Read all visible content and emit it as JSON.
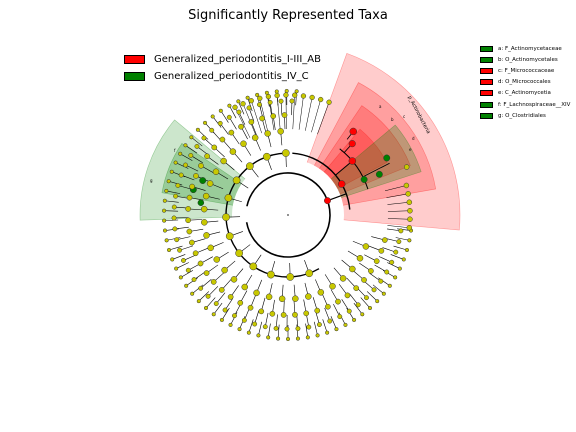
{
  "title": "Significantly Represented Taxa",
  "legend": [
    {
      "label": "Generalized_periodontitis_I-III_AB",
      "color": "#ff0000"
    },
    {
      "label": "Generalized_periodontitis_IV_C",
      "color": "#008000"
    }
  ],
  "side_legend": [
    {
      "label": "a: F_Actinomycetaceae",
      "color": "#008000"
    },
    {
      "label": "b: O_Actinomycetales",
      "color": "#008000"
    },
    {
      "label": "c: F_Micrococcaceae",
      "color": "#ff0000"
    },
    {
      "label": "d: O_Micrococcales",
      "color": "#ff0000"
    },
    {
      "label": "e: C_Actinomycetia",
      "color": "#ff0000"
    },
    {
      "label": "f: F_Lachnospiraceae__XIV",
      "color": "#008000"
    },
    {
      "label": "g: O_Clostridiales",
      "color": "#008000"
    }
  ],
  "clade_labels": {
    "actinobacteria": "p_Actinobacteria",
    "a": "a",
    "b": "b",
    "c": "c",
    "d": "d",
    "e": "e",
    "f": "f",
    "g": "g"
  },
  "colors": {
    "neutral_node": "#c8c800",
    "red_node": "#ff0000",
    "green_node": "#008000",
    "red_shade": "#ff0000",
    "green_shade": "#008000"
  }
}
